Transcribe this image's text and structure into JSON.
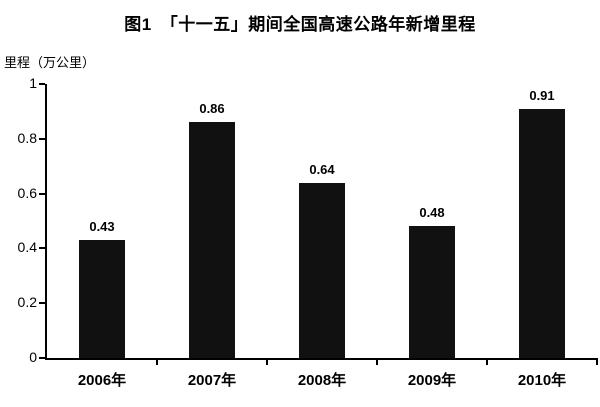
{
  "chart_data": {
    "type": "bar",
    "title": "图1　「十一五」期间全国高速公路年新增里程",
    "ylabel": "里程（万公里）",
    "xlabel": "",
    "categories": [
      "2006年",
      "2007年",
      "2008年",
      "2009年",
      "2010年"
    ],
    "values": [
      0.43,
      0.86,
      0.64,
      0.48,
      0.91
    ],
    "value_labels": [
      "0.43",
      "0.86",
      "0.64",
      "0.48",
      "0.91"
    ],
    "ylim": [
      0,
      1
    ],
    "yticks": [
      0,
      0.2,
      0.4,
      0.6,
      0.8,
      1
    ],
    "ytick_labels": [
      "0",
      "0.2",
      "0.4",
      "0.6",
      "0.8",
      "1"
    ],
    "bar_color": "#111111",
    "grid": false,
    "legend": "none"
  }
}
